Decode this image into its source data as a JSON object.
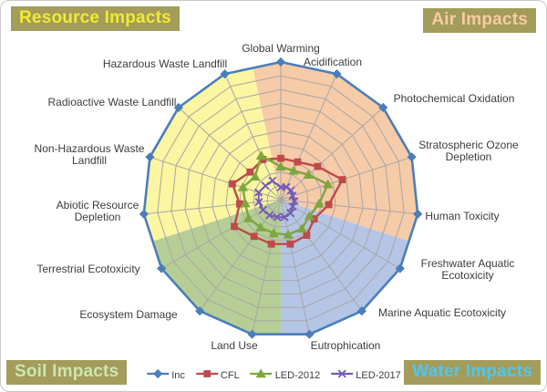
{
  "corner_labels": {
    "resource": {
      "label": "Resource Impacts",
      "text_color": "#F2EA31",
      "bg": "#A39C5A"
    },
    "air": {
      "label": "Air Impacts",
      "text_color": "#F8CBA4",
      "bg": "#A39C5A"
    },
    "soil": {
      "label": "Soil Impacts",
      "text_color": "#CDE6B1",
      "bg": "#A39C5A"
    },
    "water": {
      "label": "Water Impacts",
      "text_color": "#4EC7F2",
      "bg": "#A39C5A"
    }
  },
  "chart_data": {
    "type": "radar",
    "rings": 10,
    "r_range": [
      0,
      1.0
    ],
    "grid_color": "#A6A6A6",
    "label_color": "#3C3C3C",
    "categories": [
      [
        "Global Warming"
      ],
      [
        "Acidification"
      ],
      [
        "Photochemical Oxidation"
      ],
      [
        "Stratospheric Ozone",
        "Depletion"
      ],
      [
        "Human Toxicity"
      ],
      [
        "Freshwater Aquatic",
        "Ecotoxicity"
      ],
      [
        "Marine Aquatic Ecotoxicity"
      ],
      [
        "Eutrophication"
      ],
      [
        "Land Use"
      ],
      [
        "Ecosystem Damage"
      ],
      [
        "Terrestrial Ecotoxicity"
      ],
      [
        "Abiotic Resource",
        "Depletion"
      ],
      [
        "Non-Hazardous Waste",
        "Landfill"
      ],
      [
        "Radioactive Waste Landfill"
      ],
      [
        "Hazardous Waste Landfill"
      ]
    ],
    "series": [
      {
        "name": "Inc",
        "color": "#4A7EBB",
        "marker": "diamond",
        "line_width": 2.6,
        "values": [
          1.0,
          1.0,
          1.0,
          1.0,
          1.0,
          1.0,
          1.0,
          1.0,
          1.0,
          1.0,
          1.0,
          1.0,
          1.0,
          1.0,
          1.0
        ]
      },
      {
        "name": "CFL",
        "color": "#BE4B48",
        "marker": "square",
        "line_width": 2.4,
        "values": [
          0.3,
          0.3,
          0.36,
          0.47,
          0.35,
          0.28,
          0.32,
          0.33,
          0.33,
          0.33,
          0.39,
          0.3,
          0.37,
          0.3,
          0.32
        ]
      },
      {
        "name": "LED-2012",
        "color": "#7EA63E",
        "marker": "triangle",
        "line_width": 2.4,
        "values": [
          0.24,
          0.23,
          0.27,
          0.36,
          0.28,
          0.24,
          0.26,
          0.26,
          0.25,
          0.25,
          0.27,
          0.26,
          0.29,
          0.25,
          0.35
        ]
      },
      {
        "name": "LED-2017",
        "color": "#7459B8",
        "marker": "x",
        "line_width": 2.0,
        "values": [
          0.09,
          0.1,
          0.1,
          0.09,
          0.1,
          0.1,
          0.12,
          0.13,
          0.13,
          0.14,
          0.15,
          0.16,
          0.17,
          0.15,
          0.15
        ]
      }
    ],
    "sector_fills": [
      {
        "group": "Air Impacts",
        "color": "#F6CBA8",
        "axes": [
          0,
          4
        ]
      },
      {
        "group": "Water Impacts",
        "color": "#B5C5E6",
        "axes": [
          5,
          7
        ]
      },
      {
        "group": "Soil Impacts",
        "color": "#B6CE95",
        "axes": [
          8,
          10
        ]
      },
      {
        "group": "Resource Impacts",
        "color": "#FCF5A1",
        "axes": [
          11,
          14
        ]
      }
    ]
  }
}
